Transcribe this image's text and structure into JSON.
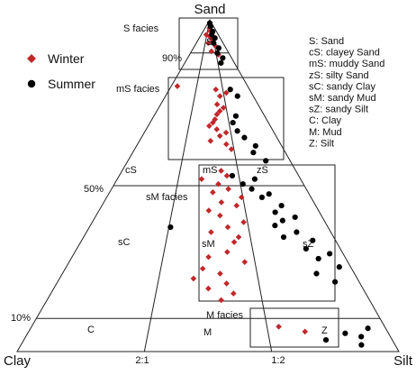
{
  "chart_data": {
    "type": "scatter",
    "diagram": "ternary sediment classification (Folk)",
    "vertices": {
      "top": "Sand",
      "left": "Clay",
      "right": "Silt"
    },
    "sand_levels": [
      "90%",
      "50%",
      "10%"
    ],
    "silt_clay_ratios": [
      "2:1",
      "1:2"
    ],
    "zone_labels": {
      "S": "S",
      "mS": "mS",
      "cS": "cS",
      "zS": "zS",
      "sC": "sC",
      "sM": "sM",
      "sZ": "sZ",
      "C": "C",
      "M": "M",
      "Z": "Z"
    },
    "facies_labels": [
      "S facies",
      "mS facies",
      "sM facies",
      "M facies"
    ],
    "legend_markers": [
      {
        "name": "Winter",
        "color": "#c0282b",
        "marker": "diamond"
      },
      {
        "name": "Summer",
        "color": "#000000",
        "marker": "circle"
      }
    ],
    "abbreviations": [
      "S: Sand",
      "cS: clayey Sand",
      "mS: muddy Sand",
      "zS: silty Sand",
      "sC: sandy Clay",
      "sM: sandy Mud",
      "sZ: sandy Silt",
      "C: Clay",
      "M: Mud",
      "Z: Silt"
    ],
    "series": [
      {
        "name": "Winter",
        "points": [
          {
            "sand": 0.985,
            "silt_fraction": 0.5
          },
          {
            "sand": 0.975,
            "silt_fraction": 0.48
          },
          {
            "sand": 0.965,
            "silt_fraction": 0.55
          },
          {
            "sand": 0.955,
            "silt_fraction": 0.3
          },
          {
            "sand": 0.95,
            "silt_fraction": 0.5
          },
          {
            "sand": 0.94,
            "silt_fraction": 0.6
          },
          {
            "sand": 0.93,
            "silt_fraction": 0.45
          },
          {
            "sand": 0.92,
            "silt_fraction": 0.7
          },
          {
            "sand": 0.905,
            "silt_fraction": 0.55
          },
          {
            "sand": 0.895,
            "silt_fraction": 0.72
          },
          {
            "sand": 0.8,
            "silt_fraction": 0.08
          },
          {
            "sand": 0.79,
            "silt_fraction": 0.58
          },
          {
            "sand": 0.78,
            "silt_fraction": 0.7
          },
          {
            "sand": 0.77,
            "silt_fraction": 0.62
          },
          {
            "sand": 0.745,
            "silt_fraction": 0.58
          },
          {
            "sand": 0.735,
            "silt_fraction": 0.64
          },
          {
            "sand": 0.725,
            "silt_fraction": 0.6
          },
          {
            "sand": 0.715,
            "silt_fraction": 0.57
          },
          {
            "sand": 0.7,
            "silt_fraction": 0.55
          },
          {
            "sand": 0.69,
            "silt_fraction": 0.53
          },
          {
            "sand": 0.68,
            "silt_fraction": 0.5
          },
          {
            "sand": 0.67,
            "silt_fraction": 0.56
          },
          {
            "sand": 0.66,
            "silt_fraction": 0.63
          },
          {
            "sand": 0.65,
            "silt_fraction": 0.58
          },
          {
            "sand": 0.635,
            "silt_fraction": 0.51
          },
          {
            "sand": 0.625,
            "silt_fraction": 0.62
          },
          {
            "sand": 0.61,
            "silt_fraction": 0.65
          },
          {
            "sand": 0.545,
            "silt_fraction": 0.57
          },
          {
            "sand": 0.53,
            "silt_fraction": 0.6
          },
          {
            "sand": 0.52,
            "silt_fraction": 0.46
          },
          {
            "sand": 0.505,
            "silt_fraction": 0.55
          },
          {
            "sand": 0.49,
            "silt_fraction": 0.6
          },
          {
            "sand": 0.48,
            "silt_fraction": 0.52
          },
          {
            "sand": 0.465,
            "silt_fraction": 0.66
          },
          {
            "sand": 0.45,
            "silt_fraction": 0.56
          },
          {
            "sand": 0.44,
            "silt_fraction": 0.63
          },
          {
            "sand": 0.425,
            "silt_fraction": 0.5
          },
          {
            "sand": 0.41,
            "silt_fraction": 0.55
          },
          {
            "sand": 0.39,
            "silt_fraction": 0.65
          },
          {
            "sand": 0.375,
            "silt_fraction": 0.58
          },
          {
            "sand": 0.36,
            "silt_fraction": 0.51
          },
          {
            "sand": 0.345,
            "silt_fraction": 0.62
          },
          {
            "sand": 0.33,
            "silt_fraction": 0.6
          },
          {
            "sand": 0.3,
            "silt_fraction": 0.57
          },
          {
            "sand": 0.285,
            "silt_fraction": 0.5
          },
          {
            "sand": 0.27,
            "silt_fraction": 0.63
          },
          {
            "sand": 0.25,
            "silt_fraction": 0.48
          },
          {
            "sand": 0.235,
            "silt_fraction": 0.54
          },
          {
            "sand": 0.22,
            "silt_fraction": 0.45
          },
          {
            "sand": 0.205,
            "silt_fraction": 0.56
          },
          {
            "sand": 0.19,
            "silt_fraction": 0.5
          },
          {
            "sand": 0.175,
            "silt_fraction": 0.58
          },
          {
            "sand": 0.155,
            "silt_fraction": 0.54
          },
          {
            "sand": 0.075,
            "silt_fraction": 0.7
          },
          {
            "sand": 0.06,
            "silt_fraction": 0.77
          }
        ]
      },
      {
        "name": "Summer",
        "points": [
          {
            "sand": 0.99,
            "silt_fraction": 0.5
          },
          {
            "sand": 0.98,
            "silt_fraction": 0.6
          },
          {
            "sand": 0.965,
            "silt_fraction": 0.72
          },
          {
            "sand": 0.955,
            "silt_fraction": 0.62
          },
          {
            "sand": 0.945,
            "silt_fraction": 0.75
          },
          {
            "sand": 0.93,
            "silt_fraction": 0.65
          },
          {
            "sand": 0.915,
            "silt_fraction": 0.78
          },
          {
            "sand": 0.9,
            "silt_fraction": 0.7
          },
          {
            "sand": 0.885,
            "silt_fraction": 0.8
          },
          {
            "sand": 0.87,
            "silt_fraction": 0.73
          },
          {
            "sand": 0.79,
            "silt_fraction": 0.76
          },
          {
            "sand": 0.77,
            "silt_fraction": 0.82
          },
          {
            "sand": 0.71,
            "silt_fraction": 0.74
          },
          {
            "sand": 0.69,
            "silt_fraction": 0.7
          },
          {
            "sand": 0.665,
            "silt_fraction": 0.72
          },
          {
            "sand": 0.645,
            "silt_fraction": 0.76
          },
          {
            "sand": 0.62,
            "silt_fraction": 0.82
          },
          {
            "sand": 0.6,
            "silt_fraction": 0.79
          },
          {
            "sand": 0.575,
            "silt_fraction": 0.85
          },
          {
            "sand": 0.53,
            "silt_fraction": 0.63
          },
          {
            "sand": 0.52,
            "silt_fraction": 0.75
          },
          {
            "sand": 0.505,
            "silt_fraction": 0.68
          },
          {
            "sand": 0.49,
            "silt_fraction": 0.72
          },
          {
            "sand": 0.475,
            "silt_fraction": 0.8
          },
          {
            "sand": 0.465,
            "silt_fraction": 0.76
          },
          {
            "sand": 0.44,
            "silt_fraction": 0.84
          },
          {
            "sand": 0.42,
            "silt_fraction": 0.8
          },
          {
            "sand": 0.405,
            "silt_fraction": 0.88
          },
          {
            "sand": 0.395,
            "silt_fraction": 0.82
          },
          {
            "sand": 0.38,
            "silt_fraction": 0.78
          },
          {
            "sand": 0.36,
            "silt_fraction": 0.86
          },
          {
            "sand": 0.345,
            "silt_fraction": 0.8
          },
          {
            "sand": 0.335,
            "silt_fraction": 0.91
          },
          {
            "sand": 0.31,
            "silt_fraction": 0.87
          },
          {
            "sand": 0.295,
            "silt_fraction": 0.95
          },
          {
            "sand": 0.28,
            "silt_fraction": 0.9
          },
          {
            "sand": 0.255,
            "silt_fraction": 0.96
          },
          {
            "sand": 0.235,
            "silt_fraction": 0.87
          },
          {
            "sand": 0.21,
            "silt_fraction": 0.92
          },
          {
            "sand": 0.375,
            "silt_fraction": 0.34
          },
          {
            "sand": 0.07,
            "silt_fraction": 0.95
          },
          {
            "sand": 0.055,
            "silt_fraction": 0.88
          },
          {
            "sand": 0.045,
            "silt_fraction": 0.92
          },
          {
            "sand": 0.035,
            "silt_fraction": 0.82
          },
          {
            "sand": 0.02,
            "silt_fraction": 0.91
          }
        ]
      }
    ]
  }
}
